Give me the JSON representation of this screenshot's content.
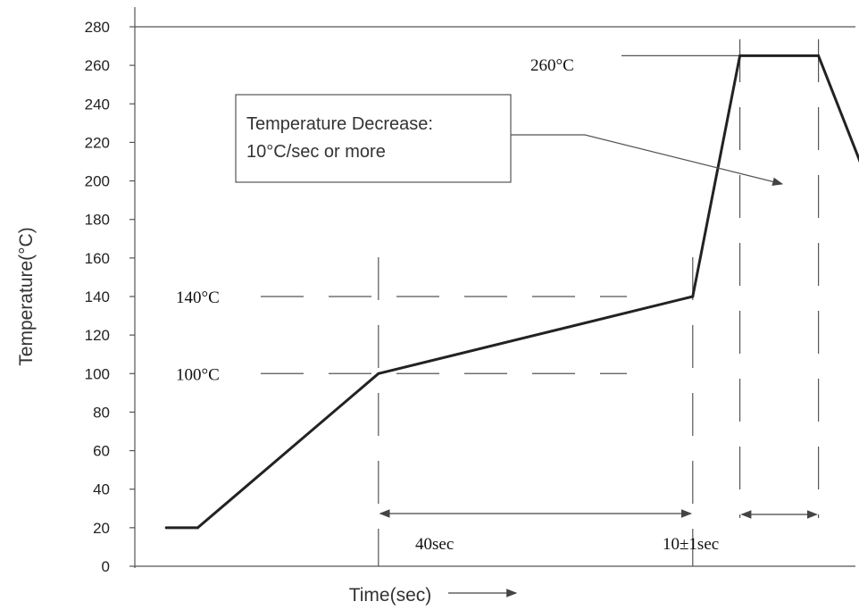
{
  "chart_data": {
    "type": "line",
    "title": "",
    "ylabel": "Temperature(°C)",
    "xlabel": "Time(sec)",
    "ylim": [
      0,
      280
    ],
    "yticks": [
      0,
      20,
      40,
      60,
      80,
      100,
      120,
      140,
      160,
      180,
      200,
      220,
      240,
      260,
      280
    ],
    "grid": false,
    "series": [
      {
        "points": [
          {
            "x": 0,
            "y": 20
          },
          {
            "x": 4,
            "y": 20
          },
          {
            "x": 27,
            "y": 100
          },
          {
            "x": 67,
            "y": 140
          },
          {
            "x": 73,
            "y": 265
          },
          {
            "x": 83,
            "y": 265
          },
          {
            "x": 96,
            "y": 130
          }
        ]
      }
    ],
    "annotations": {
      "temp_140": "140°C",
      "temp_100": "100°C",
      "temp_260": "260°C",
      "duration_40": "40sec",
      "duration_10": "10±1sec",
      "decrease_line1": "Temperature Decrease:",
      "decrease_line2": "10°C/sec or more"
    }
  }
}
